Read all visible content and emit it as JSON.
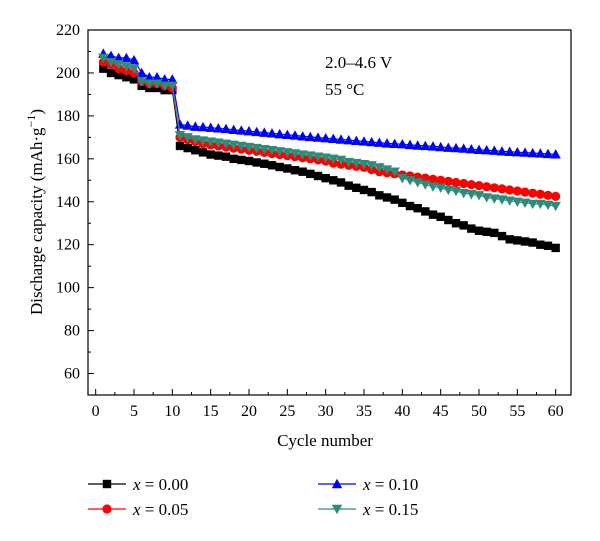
{
  "chart_data": {
    "type": "line",
    "xlabel": "Cycle number",
    "ylabel": "Discharge capacity (mAh·g",
    "ylabel_sup": "−1",
    "ylabel_close": ")",
    "xlim": [
      -1,
      62
    ],
    "ylim": [
      50,
      220
    ],
    "xticks": [
      "0",
      "5",
      "10",
      "15",
      "20",
      "25",
      "30",
      "35",
      "40",
      "45",
      "50",
      "55",
      "60"
    ],
    "yticks": [
      "60",
      "80",
      "100",
      "120",
      "140",
      "160",
      "180",
      "200",
      "220"
    ],
    "annotations": [
      "2.0–4.6 V",
      "55 °C"
    ],
    "x": [
      1,
      2,
      3,
      4,
      5,
      6,
      7,
      8,
      9,
      10,
      11,
      12,
      13,
      14,
      15,
      16,
      17,
      18,
      19,
      20,
      21,
      22,
      23,
      24,
      25,
      26,
      27,
      28,
      29,
      30,
      31,
      32,
      33,
      34,
      35,
      36,
      37,
      38,
      39,
      40,
      41,
      42,
      43,
      44,
      45,
      46,
      47,
      48,
      49,
      50,
      51,
      52,
      53,
      54,
      55,
      56,
      57,
      58,
      59,
      60
    ],
    "series": [
      {
        "name": "x = 0.00",
        "color": "#000000",
        "marker": "square",
        "values": [
          202,
          200,
          199,
          198,
          197,
          194,
          193,
          193,
          192,
          192,
          166,
          165,
          164,
          163,
          162,
          161.5,
          161,
          160,
          159.5,
          159,
          158.3,
          157.7,
          157,
          156.2,
          155.5,
          154.7,
          154,
          153,
          152,
          151,
          150,
          149,
          147.5,
          146.5,
          145.5,
          144.5,
          143,
          142,
          141,
          139.5,
          138,
          137,
          135.5,
          134,
          133,
          131.5,
          130,
          129,
          127.5,
          126.5,
          126,
          125.5,
          124,
          122.5,
          122,
          121.5,
          121,
          120,
          119.5,
          118.5
        ]
      },
      {
        "name": "x = 0.05",
        "color": "#ff0000",
        "marker": "circle",
        "values": [
          205,
          204,
          202,
          201,
          200,
          196,
          195,
          195,
          194,
          193,
          170,
          169,
          168,
          167,
          166.5,
          166,
          165.5,
          165,
          164.5,
          164,
          163.5,
          163,
          162.5,
          162,
          161.5,
          161,
          160.5,
          160,
          159.5,
          159,
          158,
          157.5,
          157,
          156.5,
          156,
          155,
          154,
          153.5,
          153,
          152.5,
          152,
          151.5,
          151,
          150.5,
          150,
          149.5,
          149,
          148.5,
          148,
          147.5,
          147,
          146.5,
          146,
          145.5,
          145,
          144.5,
          144,
          143.5,
          143,
          142.5
        ]
      },
      {
        "name": "x = 0.10",
        "color": "#0000ff",
        "marker": "triangle-up",
        "values": [
          209,
          208,
          207,
          207,
          206,
          200,
          198,
          198,
          197,
          197,
          176,
          175.5,
          175,
          174.8,
          174.5,
          174.2,
          173.9,
          173.5,
          173.2,
          172.9,
          172.5,
          172.2,
          171.9,
          171.5,
          171.2,
          170.9,
          170.5,
          170.2,
          169.9,
          169.6,
          169.3,
          169,
          168.7,
          168.4,
          168.1,
          167.8,
          167.5,
          167.2,
          167,
          166.8,
          166.5,
          166.2,
          166,
          165.8,
          165.5,
          165.2,
          165,
          164.8,
          164.5,
          164.2,
          164,
          163.8,
          163.5,
          163.3,
          163.1,
          162.9,
          162.7,
          162.5,
          162.3,
          162.1
        ]
      },
      {
        "name": "x = 0.15",
        "color": "#2e8b7a",
        "marker": "triangle-down",
        "values": [
          207,
          205,
          204,
          203,
          202,
          196,
          195,
          195,
          194,
          194,
          171,
          170,
          169,
          168.5,
          168,
          167.5,
          167,
          166.5,
          166,
          165.5,
          165,
          164.5,
          164,
          163.5,
          163,
          162.5,
          162,
          161.5,
          161,
          160.5,
          160,
          159.5,
          158.5,
          158,
          157.5,
          157,
          156,
          155,
          154,
          151,
          150,
          149,
          148,
          147,
          146.5,
          145.5,
          145,
          144,
          143.5,
          143,
          142,
          141.5,
          141,
          140.5,
          140,
          139.5,
          139,
          139,
          138.5,
          138
        ]
      }
    ],
    "legend": {
      "placement": "bottom",
      "items": [
        "x = 0.00",
        "x = 0.05",
        "x = 0.10",
        "x = 0.15"
      ]
    }
  }
}
